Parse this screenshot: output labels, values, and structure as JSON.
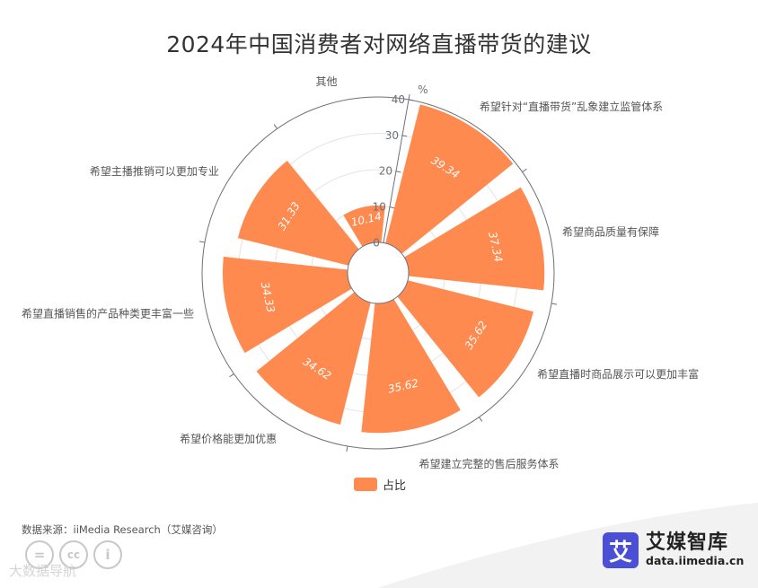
{
  "chart_data": {
    "type": "polar-bar",
    "title": "2024年中国消费者对网络直播带货的建议",
    "unit_label": "%",
    "radial_ticks": [
      "0",
      "10",
      "20",
      "30",
      "40"
    ],
    "rlim": [
      0,
      40
    ],
    "categories": [
      "希望针对“直播带货”乱象建立监管体系",
      "希望商品质量有保障",
      "希望直播时商品展示可以更加丰富",
      "希望建立完整的售后服务体系",
      "希望价格能更加优惠",
      "希望直播销售的产品种类更丰富一些",
      "希望主播推销可以更加专业",
      "其他"
    ],
    "series": [
      {
        "name": "占比",
        "values": [
          39.34,
          37.34,
          35.62,
          35.62,
          34.62,
          34.33,
          31.33,
          10.14
        ],
        "color": "#ff8a50"
      }
    ],
    "legend_position": "bottom-center"
  },
  "source_text": "数据来源：iiMedia Research（艾媒咨询）",
  "watermark_text": "大数据导航",
  "cc_icons": [
    "equals-icon",
    "cc-icon",
    "person-icon"
  ],
  "brand": {
    "logo_char": "艾",
    "name": "艾媒智库",
    "url": "data.iimedia.cn",
    "logo_color": "#4a4fd6"
  }
}
